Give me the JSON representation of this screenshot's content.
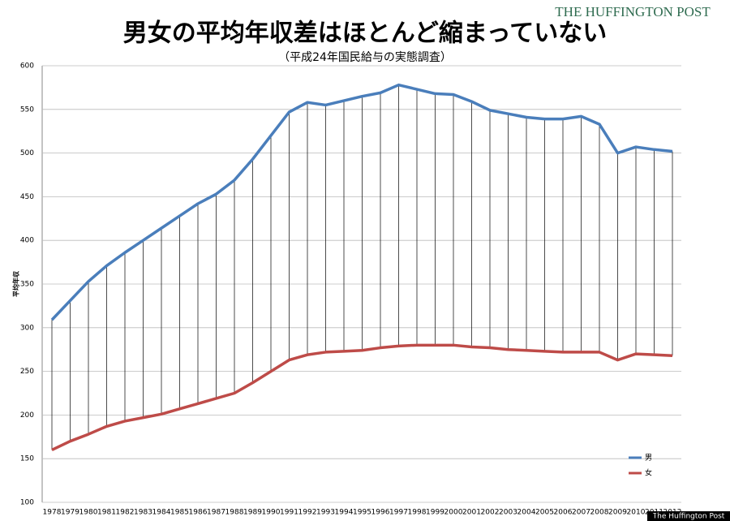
{
  "brand": "THE HUFFINGTON POST",
  "footer": "The Huffington Post",
  "chart_data": {
    "type": "line",
    "title": "男女の平均年収差はほとんど縮まっていない",
    "subtitle": "（平成24年国民給与の実態調査）",
    "y_label": "平均年収",
    "categories": [
      "1978",
      "1979",
      "1980",
      "1981",
      "1982",
      "1983",
      "1984",
      "1985",
      "1986",
      "1987",
      "1988",
      "1989",
      "1990",
      "1991",
      "1992",
      "1993",
      "1994",
      "1995",
      "1996",
      "1997",
      "1998",
      "1999",
      "2000",
      "2001",
      "2002",
      "2003",
      "2004",
      "2005",
      "2006",
      "2007",
      "2008",
      "2009",
      "2010",
      "2011",
      "2012"
    ],
    "series": [
      {
        "name": "男",
        "color": "#4a7ebb",
        "values": [
          309,
          331,
          353,
          371,
          386,
          400,
          414,
          428,
          442,
          453,
          469,
          493,
          520,
          547,
          558,
          555,
          560,
          565,
          569,
          578,
          573,
          568,
          567,
          559,
          549,
          545,
          541,
          539,
          539,
          542,
          533,
          500,
          507,
          504,
          502
        ]
      },
      {
        "name": "女",
        "color": "#be4b48",
        "values": [
          160,
          170,
          178,
          187,
          193,
          197,
          201,
          207,
          213,
          219,
          225,
          237,
          250,
          263,
          269,
          272,
          273,
          274,
          277,
          279,
          280,
          280,
          280,
          278,
          277,
          275,
          274,
          273,
          272,
          272,
          272,
          263,
          270,
          269,
          268
        ]
      }
    ],
    "ylim": [
      100,
      600
    ],
    "yticks": [
      100,
      150,
      200,
      250,
      300,
      350,
      400,
      450,
      500,
      550,
      600
    ],
    "grid": true,
    "hi_lo_lines": true,
    "legend": "lower-right"
  }
}
